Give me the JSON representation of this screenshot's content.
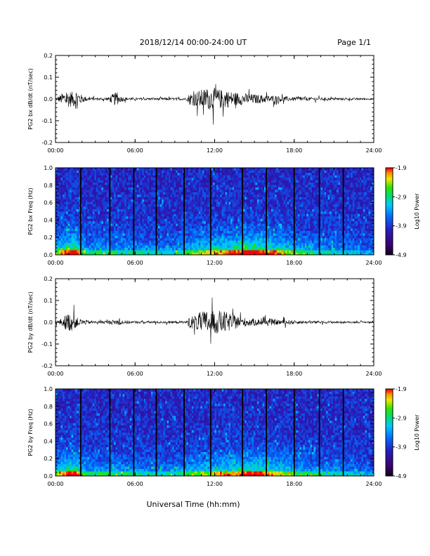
{
  "header": {
    "title": "2018/12/14  00:00-24:00 UT",
    "page": "Page 1/1"
  },
  "footer": {
    "xlabel": "Universal Time (hh:mm)"
  },
  "chart_data": [
    {
      "type": "line",
      "ylabel": "PG2 bx dB/dt (nT/sec)",
      "x_ticks": [
        "00:00",
        "06:00",
        "12:00",
        "18:00",
        "24:00"
      ],
      "xlim": [
        0,
        24
      ],
      "ylim": [
        -0.2,
        0.2
      ],
      "y_ticks": [
        "0.2",
        "0.1",
        "0.0",
        "-0.1",
        "-0.2"
      ],
      "envelope": {
        "x": [
          0,
          0.3,
          0.6,
          1.0,
          1.3,
          1.6,
          2.0,
          2.5,
          3.0,
          3.5,
          4.0,
          4.4,
          4.6,
          4.8,
          5.2,
          6.0,
          7.0,
          8.0,
          9.0,
          9.9,
          10.1,
          10.5,
          11.0,
          11.5,
          12.0,
          12.5,
          13.0,
          13.5,
          14.0,
          14.5,
          15.0,
          15.5,
          16.0,
          16.5,
          17.0,
          17.5,
          18.0,
          18.5,
          19.0,
          20.0,
          21.0,
          22.0,
          23.0,
          24.0
        ],
        "amplitude": [
          0.01,
          0.03,
          0.06,
          0.07,
          0.06,
          0.09,
          0.03,
          0.015,
          0.01,
          0.012,
          0.015,
          0.05,
          0.06,
          0.03,
          0.015,
          0.01,
          0.01,
          0.01,
          0.01,
          0.01,
          0.05,
          0.06,
          0.08,
          0.09,
          0.09,
          0.08,
          0.07,
          0.06,
          0.05,
          0.045,
          0.04,
          0.035,
          0.03,
          0.03,
          0.025,
          0.02,
          0.015,
          0.02,
          0.015,
          0.012,
          0.01,
          0.01,
          0.008,
          0.006
        ]
      }
    },
    {
      "type": "heatmap",
      "ylabel": "PG2 bx Freq (Hz)",
      "x_ticks": [
        "00:00",
        "06:00",
        "12:00",
        "18:00",
        "24:00"
      ],
      "xlim": [
        0,
        24
      ],
      "ylim": [
        0,
        1.0
      ],
      "y_ticks": [
        "1.0",
        "0.8",
        "0.6",
        "0.4",
        "0.2",
        "0.0"
      ],
      "colorbar": {
        "label": "Log10 Power",
        "ticks": [
          "-1.9",
          "-2.9",
          "-3.9",
          "-4.9"
        ],
        "range": [
          -4.9,
          -1.9
        ]
      },
      "vertical_gaps_hours": [
        1.9,
        4.1,
        5.9,
        7.6,
        9.7,
        11.7,
        14.1,
        15.9,
        18.0,
        19.9,
        21.7
      ],
      "activity": {
        "x": [
          0,
          1,
          1.5,
          1.9,
          2.5,
          4,
          5,
          6,
          8,
          9.5,
          10,
          11,
          12,
          13,
          14,
          15,
          16,
          17,
          18,
          19,
          20,
          21,
          22,
          23,
          24
        ],
        "level": [
          0.5,
          0.75,
          0.85,
          0.5,
          0.35,
          0.4,
          0.35,
          0.35,
          0.3,
          0.35,
          0.45,
          0.55,
          0.6,
          0.65,
          0.75,
          0.8,
          0.7,
          0.6,
          0.45,
          0.4,
          0.35,
          0.3,
          0.3,
          0.25,
          0.2
        ]
      }
    },
    {
      "type": "line",
      "ylabel": "PG2 by dB/dt (nT/sec)",
      "x_ticks": [
        "00:00",
        "06:00",
        "12:00",
        "18:00",
        "24:00"
      ],
      "xlim": [
        0,
        24
      ],
      "ylim": [
        -0.2,
        0.2
      ],
      "y_ticks": [
        "0.2",
        "0.1",
        "0.0",
        "-0.1",
        "-0.2"
      ],
      "envelope": {
        "x": [
          0,
          0.3,
          0.6,
          1.0,
          1.3,
          1.6,
          2.0,
          2.5,
          3.0,
          3.5,
          4.0,
          4.4,
          4.8,
          5.2,
          6.0,
          7.0,
          8.0,
          9.0,
          9.9,
          10.1,
          10.5,
          11.0,
          11.5,
          12.0,
          12.5,
          13.0,
          13.5,
          14.0,
          14.5,
          15.0,
          15.5,
          16.0,
          16.5,
          17.0,
          17.5,
          18.0,
          19.0,
          20.0,
          21.0,
          22.0,
          23.0,
          24.0
        ],
        "amplitude": [
          0.01,
          0.02,
          0.05,
          0.08,
          0.07,
          0.04,
          0.025,
          0.015,
          0.01,
          0.012,
          0.015,
          0.02,
          0.025,
          0.015,
          0.01,
          0.01,
          0.01,
          0.01,
          0.01,
          0.05,
          0.06,
          0.09,
          0.1,
          0.09,
          0.1,
          0.08,
          0.06,
          0.04,
          0.035,
          0.03,
          0.025,
          0.03,
          0.025,
          0.02,
          0.02,
          0.015,
          0.012,
          0.01,
          0.01,
          0.008,
          0.007,
          0.006
        ]
      }
    },
    {
      "type": "heatmap",
      "ylabel": "PG2 by Freq (Hz)",
      "x_ticks": [
        "00:00",
        "06:00",
        "12:00",
        "18:00",
        "24:00"
      ],
      "xlim": [
        0,
        24
      ],
      "ylim": [
        0,
        1.0
      ],
      "y_ticks": [
        "1.0",
        "0.8",
        "0.6",
        "0.4",
        "0.2",
        "0.0"
      ],
      "colorbar": {
        "label": "Log10 Power",
        "ticks": [
          "-1.9",
          "-2.9",
          "-3.9",
          "-4.9"
        ],
        "range": [
          -4.9,
          -1.9
        ]
      },
      "vertical_gaps_hours": [
        1.9,
        4.1,
        5.9,
        7.6,
        9.7,
        11.7,
        14.1,
        15.9,
        18.0,
        19.9,
        21.7
      ],
      "activity": {
        "x": [
          0,
          1,
          1.5,
          1.9,
          2.5,
          4,
          5,
          6,
          8,
          9.5,
          10,
          11,
          12,
          13,
          14,
          15,
          16,
          17,
          18,
          19,
          20,
          21,
          22,
          23,
          24
        ],
        "level": [
          0.5,
          0.75,
          0.8,
          0.5,
          0.35,
          0.4,
          0.35,
          0.35,
          0.3,
          0.35,
          0.45,
          0.5,
          0.55,
          0.6,
          0.7,
          0.75,
          0.65,
          0.55,
          0.45,
          0.4,
          0.35,
          0.3,
          0.3,
          0.25,
          0.2
        ]
      }
    }
  ]
}
